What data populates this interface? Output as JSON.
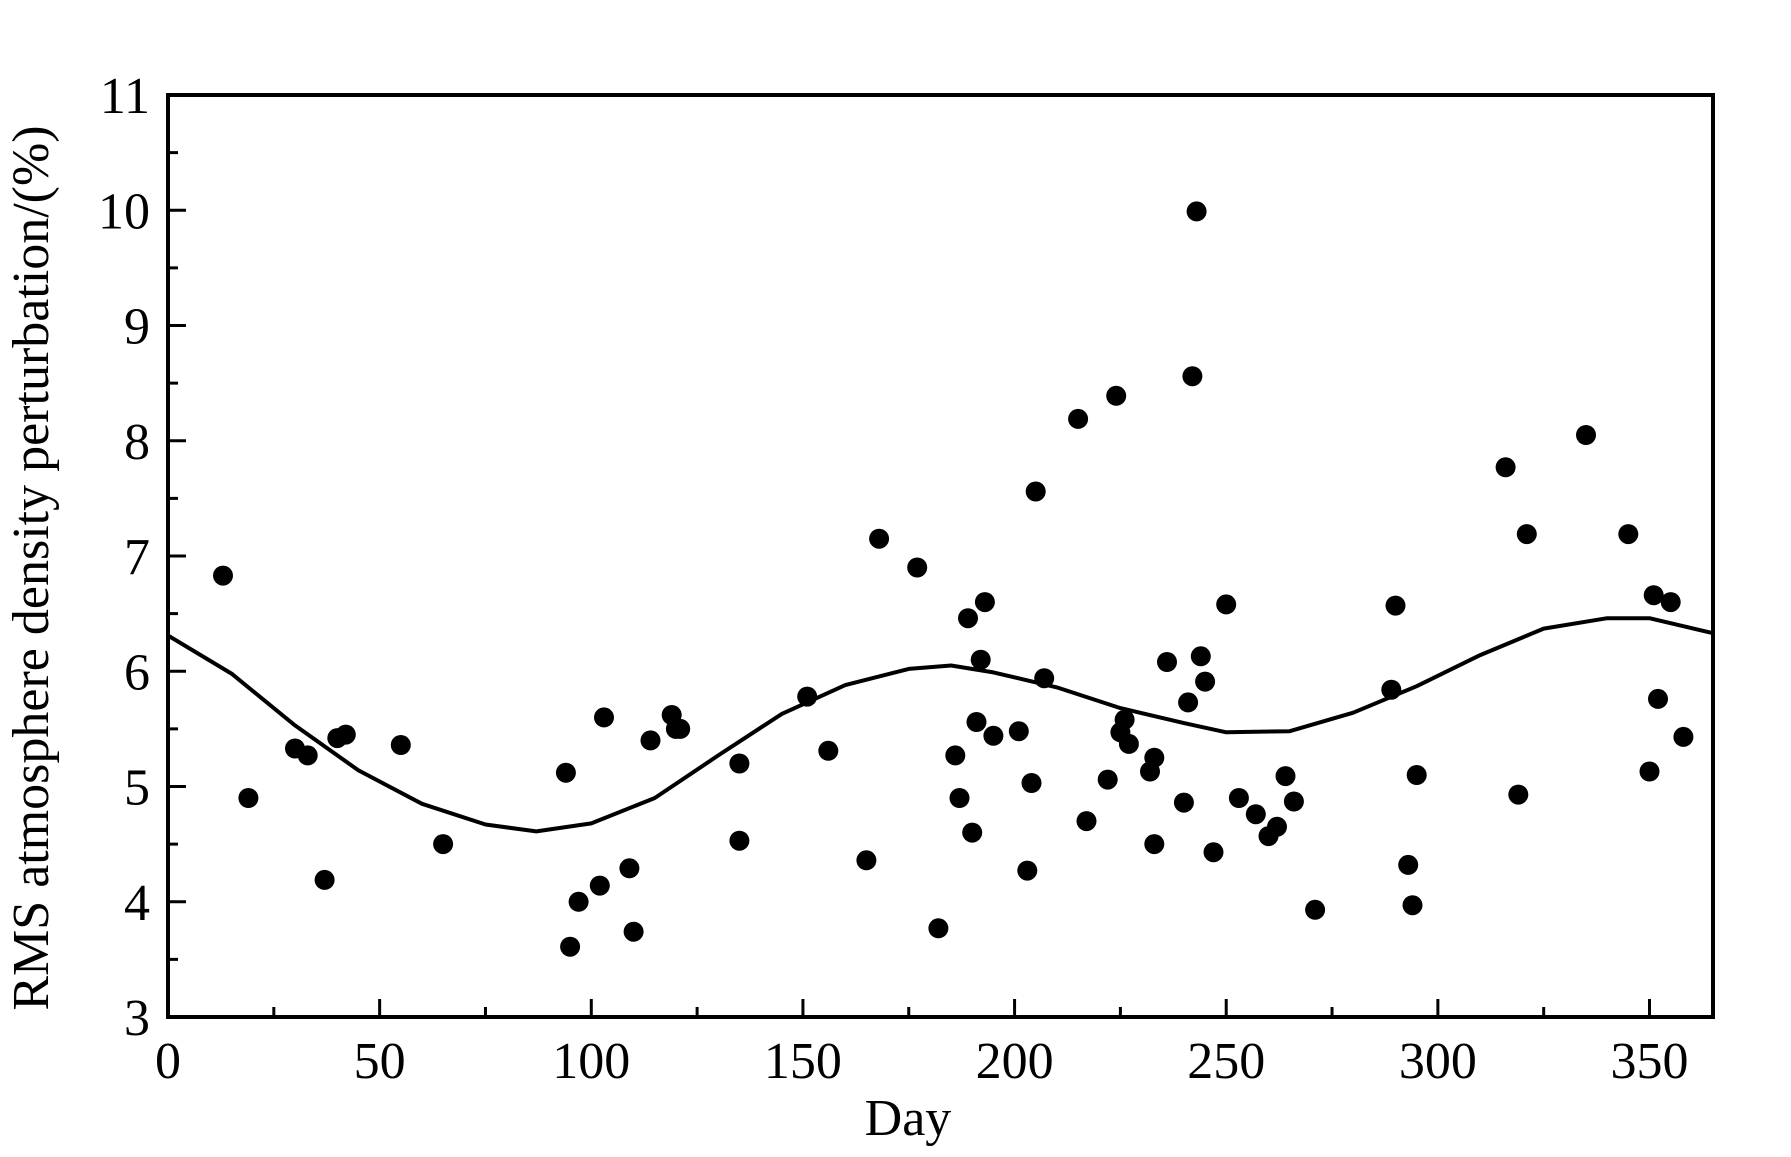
{
  "chart_data": {
    "type": "scatter",
    "xlabel": "Day",
    "ylabel": "RMS atmosphere density perturbation/(%)",
    "xlim": [
      0,
      365
    ],
    "ylim": [
      3,
      11
    ],
    "x_ticks": [
      0,
      50,
      100,
      150,
      200,
      250,
      300,
      350
    ],
    "y_ticks": [
      3,
      4,
      5,
      6,
      7,
      8,
      9,
      10,
      11
    ],
    "grid": false,
    "legend": "none",
    "colors": {
      "points": "#000000",
      "curve": "#000000",
      "axes": "#000000"
    },
    "series": [
      {
        "kind": "points",
        "x": [
          13,
          19,
          30,
          33,
          37,
          40,
          42,
          55,
          65,
          94,
          95,
          97,
          102,
          103,
          109,
          110,
          114,
          119,
          120,
          121,
          135,
          135,
          151,
          156,
          165,
          168,
          177,
          182,
          186,
          187,
          189,
          190,
          191,
          192,
          193,
          195,
          201,
          203,
          204,
          205,
          207,
          215,
          217,
          222,
          224,
          225,
          226,
          227,
          232,
          233,
          233,
          236,
          240,
          241,
          242,
          243,
          244,
          245,
          247,
          250,
          253,
          257,
          260,
          262,
          264,
          266,
          271,
          289,
          290,
          293,
          294,
          295,
          316,
          319,
          321,
          335,
          345,
          350,
          351,
          352,
          355,
          358
        ],
        "y": [
          6.83,
          4.9,
          5.33,
          5.27,
          4.19,
          5.42,
          5.45,
          5.36,
          4.5,
          5.12,
          3.61,
          4.0,
          4.14,
          5.6,
          4.29,
          3.74,
          5.4,
          5.62,
          5.5,
          5.5,
          5.2,
          4.53,
          5.78,
          5.31,
          4.36,
          7.15,
          6.9,
          3.77,
          5.27,
          4.9,
          6.46,
          4.6,
          5.56,
          6.1,
          6.6,
          5.44,
          5.48,
          4.27,
          5.03,
          7.56,
          5.94,
          8.19,
          4.7,
          5.06,
          8.39,
          5.47,
          5.58,
          5.37,
          5.13,
          4.5,
          5.25,
          6.08,
          4.86,
          5.73,
          8.56,
          9.99,
          6.13,
          5.91,
          4.43,
          6.58,
          4.9,
          4.76,
          4.57,
          4.65,
          5.09,
          4.87,
          3.93,
          5.84,
          6.57,
          4.32,
          3.97,
          5.1,
          7.77,
          4.93,
          7.19,
          8.05,
          7.19,
          5.13,
          6.66,
          5.76,
          6.6,
          5.43
        ]
      },
      {
        "kind": "curve",
        "x": [
          0,
          15,
          30,
          45,
          60,
          75,
          87,
          100,
          115,
          130,
          145,
          160,
          175,
          185,
          195,
          210,
          225,
          240,
          250,
          265,
          280,
          295,
          310,
          325,
          340,
          350,
          365
        ],
        "y": [
          6.31,
          5.98,
          5.53,
          5.14,
          4.85,
          4.67,
          4.61,
          4.68,
          4.9,
          5.27,
          5.63,
          5.88,
          6.02,
          6.05,
          5.99,
          5.86,
          5.68,
          5.55,
          5.47,
          5.48,
          5.64,
          5.87,
          6.14,
          6.37,
          6.46,
          6.46,
          6.33
        ]
      }
    ]
  }
}
